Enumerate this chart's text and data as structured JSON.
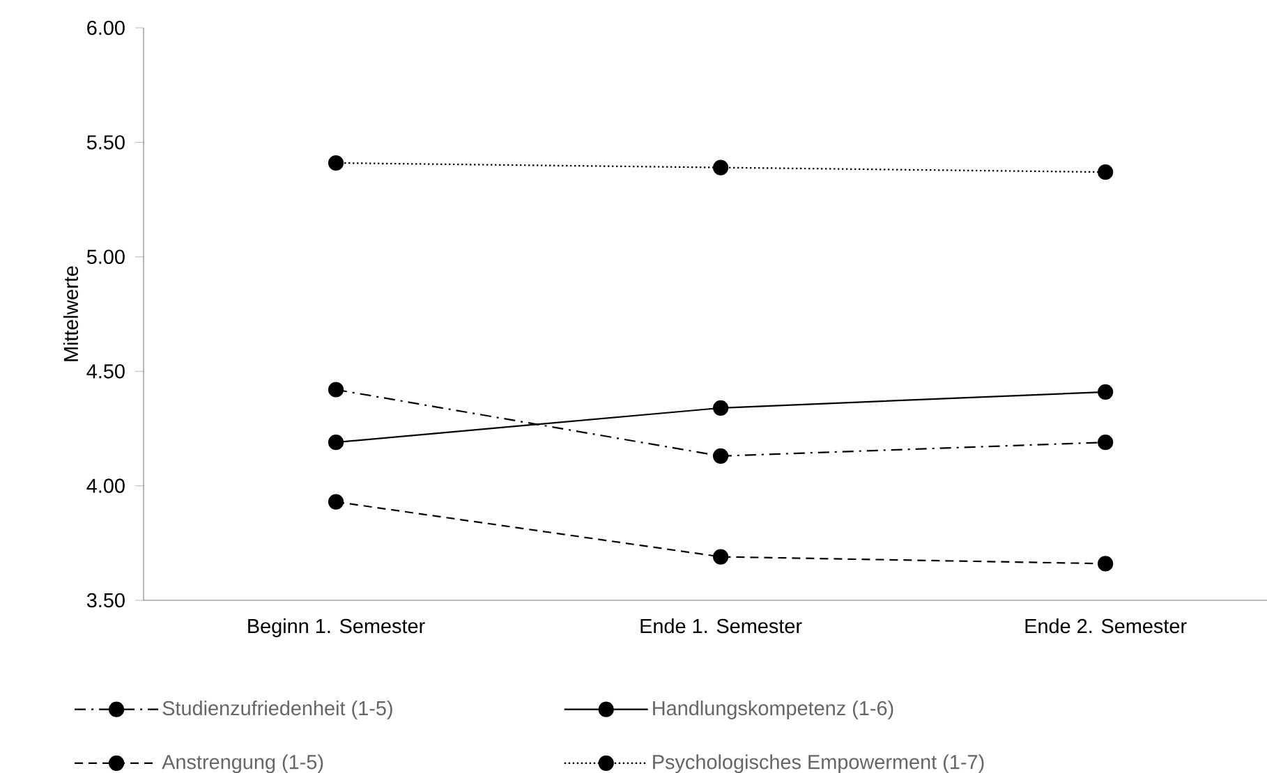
{
  "chart_data": {
    "type": "line",
    "ylabel": "Mittelwerte",
    "categories": [
      "Beginn 1. Semester",
      "Ende 1. Semester",
      "Ende 2. Semester"
    ],
    "series": [
      {
        "name": "Studienzufriedenheit (1-5)",
        "color": "#000000",
        "line_style": "dashdot",
        "values": [
          4.42,
          4.13,
          4.19
        ]
      },
      {
        "name": "Handlungskompetenz (1-6)",
        "color": "#000000",
        "line_style": "solid",
        "values": [
          4.19,
          4.34,
          4.41
        ]
      },
      {
        "name": "Anstrengung (1-5)",
        "color": "#000000",
        "line_style": "dashed",
        "values": [
          3.93,
          3.69,
          3.66
        ]
      },
      {
        "name": "Psychologisches Empowerment (1-7)",
        "color": "#000000",
        "line_style": "dotted",
        "values": [
          5.41,
          5.39,
          5.37
        ]
      }
    ],
    "ylim": [
      3.5,
      6.0
    ],
    "yticks": [
      {
        "value": 3.5,
        "label": "3.50"
      },
      {
        "value": 4.0,
        "label": "4.00"
      },
      {
        "value": 4.5,
        "label": "4.50"
      },
      {
        "value": 5.0,
        "label": "5.00"
      },
      {
        "value": 5.5,
        "label": "5.50"
      },
      {
        "value": 6.0,
        "label": "6.00"
      }
    ],
    "grid": false,
    "legend": "bottom",
    "marker": "circle"
  }
}
